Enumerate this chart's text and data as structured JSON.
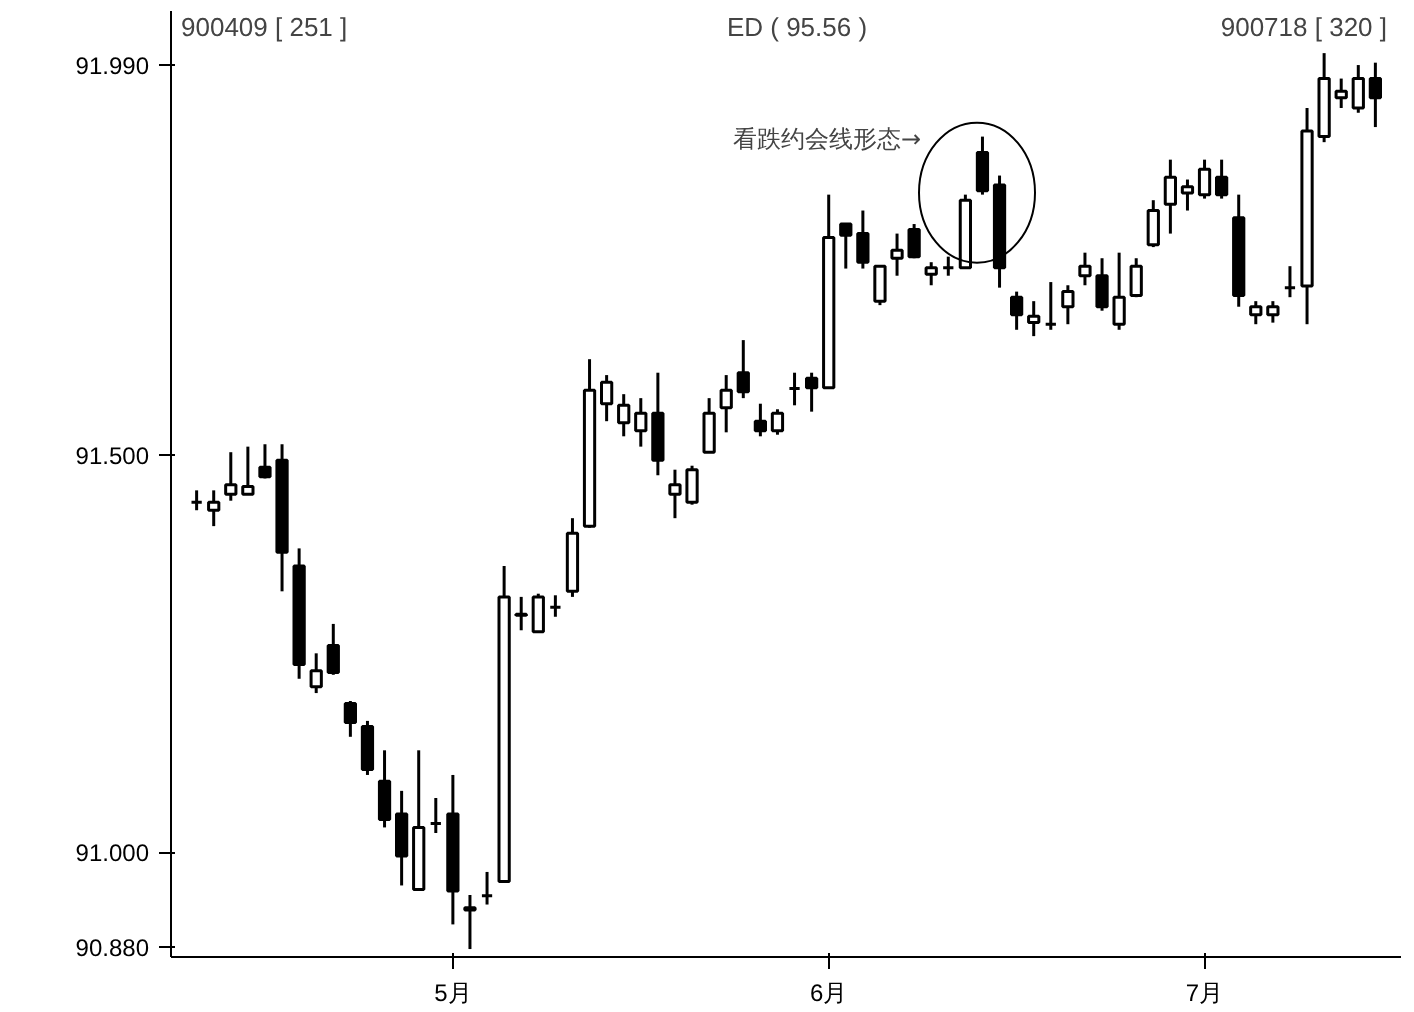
{
  "chart_data": {
    "type": "candlestick",
    "title": "ED ( 95.56 )",
    "annotations": [
      "900409 [ 251 ]",
      "900718 [ 320 ]",
      "看跌约会线形态→"
    ],
    "color": "#000000",
    "categories": [
      null,
      null,
      null,
      null,
      null,
      null,
      null,
      null,
      null,
      null,
      null,
      null,
      null,
      null,
      null,
      "5月",
      null,
      null,
      null,
      null,
      null,
      null,
      null,
      null,
      null,
      null,
      null,
      null,
      null,
      null,
      null,
      null,
      null,
      null,
      null,
      null,
      null,
      "6月",
      null,
      null,
      null,
      null,
      null,
      null,
      null,
      null,
      null,
      null,
      null,
      null,
      null,
      null,
      null,
      null,
      null,
      null,
      null,
      null,
      null,
      "7月",
      null,
      null,
      null,
      null,
      null,
      null,
      null,
      null,
      null,
      null
    ],
    "ohlc": [
      [
        91.44,
        91.455,
        91.43,
        91.44
      ],
      [
        91.43,
        91.455,
        91.41,
        91.44
      ],
      [
        91.45,
        91.503,
        91.442,
        91.462
      ],
      [
        91.45,
        91.51,
        91.45,
        91.46
      ],
      [
        91.484,
        91.513,
        91.47,
        91.472
      ],
      [
        91.493,
        91.513,
        91.328,
        91.377
      ],
      [
        91.36,
        91.382,
        91.218,
        91.236
      ],
      [
        91.208,
        91.25,
        91.2,
        91.228
      ],
      [
        91.26,
        91.287,
        91.223,
        91.226
      ],
      [
        91.187,
        91.19,
        91.145,
        91.163
      ],
      [
        91.158,
        91.165,
        91.097,
        91.104
      ],
      [
        91.089,
        91.128,
        91.031,
        91.041
      ],
      [
        91.048,
        91.077,
        90.958,
        90.995
      ],
      [
        90.953,
        91.128,
        90.953,
        91.031
      ],
      [
        91.036,
        91.068,
        91.024,
        91.036
      ],
      [
        91.048,
        91.097,
        90.909,
        90.951
      ],
      [
        90.927,
        90.946,
        90.878,
        90.93
      ],
      [
        90.945,
        90.975,
        90.934,
        90.945
      ],
      [
        90.963,
        91.36,
        90.963,
        91.321
      ],
      [
        91.298,
        91.321,
        91.279,
        91.299
      ],
      [
        91.277,
        91.325,
        91.276,
        91.321
      ],
      [
        91.308,
        91.323,
        91.296,
        91.308
      ],
      [
        91.328,
        91.42,
        91.321,
        91.401
      ],
      [
        91.41,
        91.62,
        91.408,
        91.581
      ],
      [
        91.564,
        91.6,
        91.542,
        91.591
      ],
      [
        91.54,
        91.576,
        91.523,
        91.562
      ],
      [
        91.53,
        91.571,
        91.51,
        91.552
      ],
      [
        91.552,
        91.603,
        91.474,
        91.493
      ],
      [
        91.45,
        91.481,
        91.42,
        91.462
      ],
      [
        91.44,
        91.486,
        91.437,
        91.481
      ],
      [
        91.503,
        91.571,
        91.503,
        91.552
      ],
      [
        91.559,
        91.6,
        91.528,
        91.581
      ],
      [
        91.603,
        91.644,
        91.571,
        91.579
      ],
      [
        91.542,
        91.564,
        91.523,
        91.53
      ],
      [
        91.53,
        91.557,
        91.525,
        91.552
      ],
      [
        91.583,
        91.603,
        91.562,
        91.583
      ],
      [
        91.596,
        91.603,
        91.554,
        91.584
      ],
      [
        91.584,
        91.827,
        91.584,
        91.773
      ],
      [
        91.79,
        91.79,
        91.734,
        91.776
      ],
      [
        91.778,
        91.807,
        91.734,
        91.742
      ],
      [
        91.693,
        91.737,
        91.688,
        91.737
      ],
      [
        91.747,
        91.778,
        91.725,
        91.757
      ],
      [
        91.783,
        91.79,
        91.747,
        91.749
      ],
      [
        91.727,
        91.742,
        91.713,
        91.735
      ],
      [
        91.735,
        91.749,
        91.725,
        91.735
      ],
      [
        91.735,
        91.827,
        91.735,
        91.82
      ],
      [
        91.88,
        91.9,
        91.827,
        91.832
      ],
      [
        91.839,
        91.851,
        91.71,
        91.735
      ],
      [
        91.698,
        91.705,
        91.657,
        91.676
      ],
      [
        91.666,
        91.693,
        91.649,
        91.674
      ],
      [
        91.664,
        91.717,
        91.657,
        91.664
      ],
      [
        91.686,
        91.713,
        91.664,
        91.705
      ],
      [
        91.725,
        91.754,
        91.713,
        91.737
      ],
      [
        91.725,
        91.747,
        91.681,
        91.686
      ],
      [
        91.664,
        91.754,
        91.657,
        91.698
      ],
      [
        91.7,
        91.747,
        91.698,
        91.737
      ],
      [
        91.764,
        91.82,
        91.761,
        91.807
      ],
      [
        91.815,
        91.871,
        91.778,
        91.849
      ],
      [
        91.829,
        91.846,
        91.807,
        91.837
      ],
      [
        91.827,
        91.871,
        91.822,
        91.859
      ],
      [
        91.849,
        91.871,
        91.822,
        91.827
      ],
      [
        91.798,
        91.827,
        91.686,
        91.7
      ],
      [
        91.676,
        91.693,
        91.664,
        91.686
      ],
      [
        91.676,
        91.693,
        91.666,
        91.686
      ],
      [
        91.71,
        91.737,
        91.698,
        91.71
      ],
      [
        91.712,
        91.936,
        91.664,
        91.907
      ],
      [
        91.9,
        92.005,
        91.893,
        91.973
      ],
      [
        91.949,
        91.973,
        91.936,
        91.957
      ],
      [
        91.936,
        91.99,
        91.93,
        91.973
      ],
      [
        91.973,
        91.993,
        91.912,
        91.949
      ]
    ],
    "ylim": [
      90.868,
      92.058
    ],
    "yticks": [
      {
        "value": 90.88,
        "label": "90.880"
      },
      {
        "value": 91.0,
        "label": "91.000"
      },
      {
        "value": 91.5,
        "label": "91.500"
      },
      {
        "value": 91.99,
        "label": "91.990"
      }
    ],
    "grid": false
  }
}
